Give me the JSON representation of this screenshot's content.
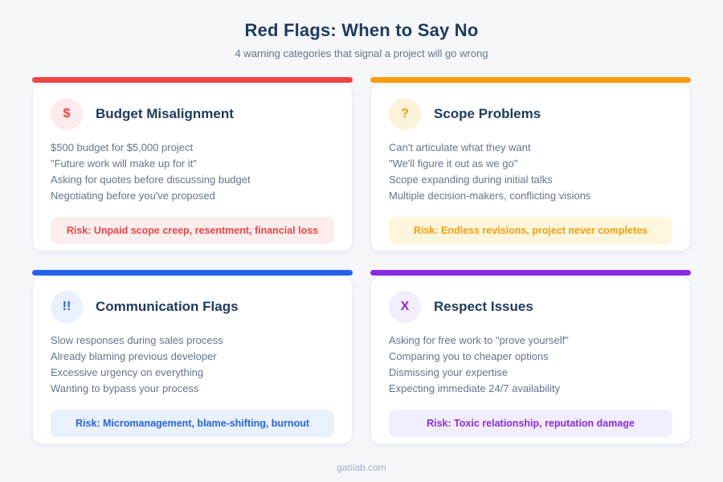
{
  "page": {
    "title": "Red Flags: When to Say No",
    "subtitle": "4 warning categories that signal a project will go wrong",
    "footer": "gatilab.com",
    "background_color": "#f5f7fb",
    "heading_color": "#1e3a5f",
    "body_text_color": "#64748b"
  },
  "cards": [
    {
      "id": "budget-misalignment",
      "title": "Budget Misalignment",
      "icon": "dollar-icon",
      "icon_glyph": "$",
      "accent": "#ef4444",
      "icon_bg": "#fdeaea",
      "risk_bg": "#fdeeee",
      "items": [
        "$500 budget for $5,000 project",
        "\"Future work will make up for it\"",
        "Asking for quotes before discussing budget",
        "Negotiating before you've proposed"
      ],
      "risk_text": "Risk: Unpaid scope creep, resentment, financial loss"
    },
    {
      "id": "scope-problems",
      "title": "Scope Problems",
      "icon": "question-icon",
      "icon_glyph": "?",
      "accent": "#f59e0b",
      "icon_bg": "#fcf3d9",
      "risk_bg": "#fdf6dc",
      "items": [
        "Can't articulate what they want",
        "\"We'll figure it out as we go\"",
        "Scope expanding during initial talks",
        "Multiple decision-makers, conflicting visions"
      ],
      "risk_text": "Risk: Endless revisions, project never completes"
    },
    {
      "id": "communication-flags",
      "title": "Communication Flags",
      "icon": "double-exclamation-icon",
      "icon_glyph": "!!",
      "accent": "#2563eb",
      "icon_bg": "#e8f1fd",
      "risk_bg": "#e9f1fd",
      "items": [
        "Slow responses during sales process",
        "Already blaming previous developer",
        "Excessive urgency on everything",
        "Wanting to bypass your process"
      ],
      "risk_text": "Risk: Micromanagement, blame-shifting, burnout"
    },
    {
      "id": "respect-issues",
      "title": "Respect Issues",
      "icon": "x-icon",
      "icon_glyph": "X",
      "accent": "#8a2be2",
      "icon_bg": "#f2edfc",
      "risk_bg": "#f3eefd",
      "items": [
        "Asking for free work to \"prove yourself\"",
        "Comparing you to cheaper options",
        "Dismissing your expertise",
        "Expecting immediate 24/7 availability"
      ],
      "risk_text": "Risk: Toxic relationship, reputation damage"
    }
  ]
}
